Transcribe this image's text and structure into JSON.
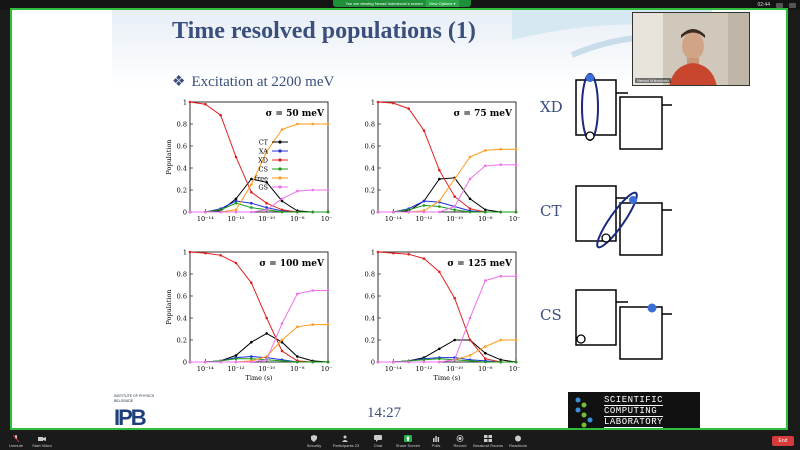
{
  "window": {
    "share_banner": "You are viewing Nenad Vukmirovic's screen",
    "view_options": "View Options ▾",
    "clock": "02:44"
  },
  "slide": {
    "title": "Time resolved populations (1)",
    "bullet": "Excitation at 2200 meV",
    "clock": "14:27",
    "logos": {
      "ipb_line1": "INSTITUTE OF PHYSICS",
      "ipb_line2": "BELGRADE",
      "ipb_mark": "IPB",
      "scl_lines": [
        "SCIENTIFIC",
        "COMPUTING",
        "LABORATORY"
      ]
    },
    "schematic_labels": [
      "XD",
      "CT",
      "CS"
    ]
  },
  "video": {
    "participant_name": "Nenad Vukmirovic"
  },
  "toolbar": {
    "unmute": "Unmute",
    "start_video": "Start Video",
    "security": "Security",
    "participants": "Participants",
    "participants_count": "23",
    "chat": "Chat",
    "share_screen": "Share Screen",
    "polls": "Polls",
    "record": "Record",
    "breakout": "Breakout Rooms",
    "reactions": "Reactions",
    "end": "End"
  },
  "colors": {
    "CT": "#000000",
    "XA": "#1f2fd6",
    "XD": "#e02020",
    "CS": "#1a9a1a",
    "free": "#ff9a1a",
    "GS": "#ee70ee",
    "slide_text": "#3a4f7d",
    "share_border": "#2fbf3d"
  },
  "chart_data": [
    {
      "type": "line",
      "title": "σ = 50 meV",
      "xlabel": "",
      "ylabel": "Population",
      "xscale": "log",
      "xlim": [
        1e-15,
        1e-06
      ],
      "ylim": [
        0,
        1
      ],
      "xticks": [
        1e-14,
        1e-12,
        1e-10,
        1e-08,
        1e-06
      ],
      "xtick_labels": [
        "10⁻¹⁴",
        "10⁻¹²",
        "10⁻¹⁰",
        "10⁻⁸",
        "10⁻⁶"
      ],
      "yticks": [
        0,
        0.2,
        0.4,
        0.6,
        0.8,
        1
      ],
      "ytick_labels": [
        "0",
        "0.2",
        "0.4",
        "0.6",
        "0.8",
        "1"
      ],
      "legend": {
        "placement": "right",
        "entries": [
          "CT",
          "XA",
          "XD",
          "CS",
          "free",
          "GS"
        ]
      },
      "x": [
        1e-15,
        1e-14,
        1e-13,
        1e-12,
        1e-11,
        1e-10,
        1e-09,
        1e-08,
        1e-07,
        1e-06
      ],
      "series": [
        {
          "name": "CT",
          "values": [
            0,
            0,
            0.01,
            0.12,
            0.3,
            0.27,
            0.1,
            0.01,
            0,
            0
          ]
        },
        {
          "name": "XA",
          "values": [
            0,
            0,
            0.03,
            0.1,
            0.08,
            0.04,
            0.01,
            0,
            0,
            0
          ]
        },
        {
          "name": "XD",
          "values": [
            1,
            0.98,
            0.88,
            0.5,
            0.18,
            0.08,
            0.02,
            0,
            0,
            0
          ]
        },
        {
          "name": "CS",
          "values": [
            0,
            0,
            0.02,
            0.08,
            0.04,
            0.02,
            0,
            0,
            0,
            0
          ]
        },
        {
          "name": "free",
          "values": [
            0,
            0,
            0,
            0.02,
            0.25,
            0.55,
            0.75,
            0.8,
            0.8,
            0.8
          ]
        },
        {
          "name": "GS",
          "values": [
            0,
            0,
            0,
            0,
            0,
            0.02,
            0.12,
            0.19,
            0.2,
            0.2
          ]
        }
      ]
    },
    {
      "type": "line",
      "title": "σ = 75 meV",
      "xlabel": "",
      "ylabel": "",
      "xscale": "log",
      "xlim": [
        1e-15,
        1e-06
      ],
      "ylim": [
        0,
        1
      ],
      "xticks": [
        1e-14,
        1e-12,
        1e-10,
        1e-08,
        1e-06
      ],
      "xtick_labels": [
        "10⁻¹⁴",
        "10⁻¹²",
        "10⁻¹⁰",
        "10⁻⁸",
        "10⁻⁶"
      ],
      "yticks": [
        0,
        0.2,
        0.4,
        0.6,
        0.8,
        1
      ],
      "ytick_labels": [
        "0",
        "0.2",
        "0.4",
        "0.6",
        "0.8",
        "1"
      ],
      "x": [
        1e-15,
        1e-14,
        1e-13,
        1e-12,
        1e-11,
        1e-10,
        1e-09,
        1e-08,
        1e-07,
        1e-06
      ],
      "series": [
        {
          "name": "CT",
          "values": [
            0,
            0,
            0.01,
            0.1,
            0.3,
            0.31,
            0.12,
            0.02,
            0,
            0
          ]
        },
        {
          "name": "XA",
          "values": [
            0,
            0,
            0.03,
            0.1,
            0.09,
            0.05,
            0.01,
            0,
            0,
            0
          ]
        },
        {
          "name": "XD",
          "values": [
            1,
            0.99,
            0.94,
            0.74,
            0.38,
            0.14,
            0.03,
            0,
            0,
            0
          ]
        },
        {
          "name": "CS",
          "values": [
            0,
            0,
            0.02,
            0.06,
            0.05,
            0.02,
            0,
            0,
            0,
            0
          ]
        },
        {
          "name": "free",
          "values": [
            0,
            0,
            0,
            0.01,
            0.1,
            0.3,
            0.5,
            0.56,
            0.57,
            0.57
          ]
        },
        {
          "name": "GS",
          "values": [
            0,
            0,
            0,
            0,
            0,
            0.05,
            0.3,
            0.42,
            0.43,
            0.43
          ]
        }
      ]
    },
    {
      "type": "line",
      "title": "σ = 100 meV",
      "xlabel": "Time (s)",
      "ylabel": "Population",
      "xscale": "log",
      "xlim": [
        1e-15,
        1e-06
      ],
      "ylim": [
        0,
        1
      ],
      "xticks": [
        1e-14,
        1e-12,
        1e-10,
        1e-08,
        1e-06
      ],
      "xtick_labels": [
        "10⁻¹⁴",
        "10⁻¹²",
        "10⁻¹⁰",
        "10⁻⁸",
        "10⁻⁶"
      ],
      "yticks": [
        0,
        0.2,
        0.4,
        0.6,
        0.8,
        1
      ],
      "ytick_labels": [
        "0",
        "0.2",
        "0.4",
        "0.6",
        "0.8",
        "1"
      ],
      "x": [
        1e-15,
        1e-14,
        1e-13,
        1e-12,
        1e-11,
        1e-10,
        1e-09,
        1e-08,
        1e-07,
        1e-06
      ],
      "series": [
        {
          "name": "CT",
          "values": [
            0,
            0,
            0.01,
            0.06,
            0.18,
            0.26,
            0.18,
            0.05,
            0.01,
            0
          ]
        },
        {
          "name": "XA",
          "values": [
            0,
            0,
            0.01,
            0.04,
            0.05,
            0.04,
            0.02,
            0,
            0,
            0
          ]
        },
        {
          "name": "XD",
          "values": [
            1,
            0.99,
            0.97,
            0.9,
            0.72,
            0.4,
            0.1,
            0.01,
            0,
            0
          ]
        },
        {
          "name": "CS",
          "values": [
            0,
            0,
            0.01,
            0.03,
            0.03,
            0.02,
            0.01,
            0,
            0,
            0
          ]
        },
        {
          "name": "free",
          "values": [
            0,
            0,
            0,
            0,
            0.01,
            0.05,
            0.2,
            0.32,
            0.34,
            0.34
          ]
        },
        {
          "name": "GS",
          "values": [
            0,
            0,
            0,
            0,
            0,
            0.02,
            0.35,
            0.62,
            0.65,
            0.65
          ]
        }
      ]
    },
    {
      "type": "line",
      "title": "σ = 125 meV",
      "xlabel": "Time (s)",
      "ylabel": "",
      "xscale": "log",
      "xlim": [
        1e-15,
        1e-06
      ],
      "ylim": [
        0,
        1
      ],
      "xticks": [
        1e-14,
        1e-12,
        1e-10,
        1e-08,
        1e-06
      ],
      "xtick_labels": [
        "10⁻¹⁴",
        "10⁻¹²",
        "10⁻¹⁰",
        "10⁻⁸",
        "10⁻⁶"
      ],
      "yticks": [
        0,
        0.2,
        0.4,
        0.6,
        0.8,
        1
      ],
      "ytick_labels": [
        "0",
        "0.2",
        "0.4",
        "0.6",
        "0.8",
        "1"
      ],
      "x": [
        1e-15,
        1e-14,
        1e-13,
        1e-12,
        1e-11,
        1e-10,
        1e-09,
        1e-08,
        1e-07,
        1e-06
      ],
      "series": [
        {
          "name": "CT",
          "values": [
            0,
            0,
            0.01,
            0.04,
            0.12,
            0.2,
            0.2,
            0.08,
            0.02,
            0
          ]
        },
        {
          "name": "XA",
          "values": [
            0,
            0,
            0.01,
            0.03,
            0.04,
            0.04,
            0.02,
            0.01,
            0,
            0
          ]
        },
        {
          "name": "XD",
          "values": [
            1,
            0.99,
            0.98,
            0.94,
            0.82,
            0.58,
            0.2,
            0.03,
            0,
            0
          ]
        },
        {
          "name": "CS",
          "values": [
            0,
            0,
            0.01,
            0.02,
            0.03,
            0.02,
            0.01,
            0,
            0,
            0
          ]
        },
        {
          "name": "free",
          "values": [
            0,
            0,
            0,
            0,
            0,
            0.02,
            0.06,
            0.14,
            0.2,
            0.2
          ]
        },
        {
          "name": "GS",
          "values": [
            0,
            0,
            0,
            0,
            0,
            0.02,
            0.4,
            0.74,
            0.78,
            0.78
          ]
        }
      ]
    }
  ]
}
